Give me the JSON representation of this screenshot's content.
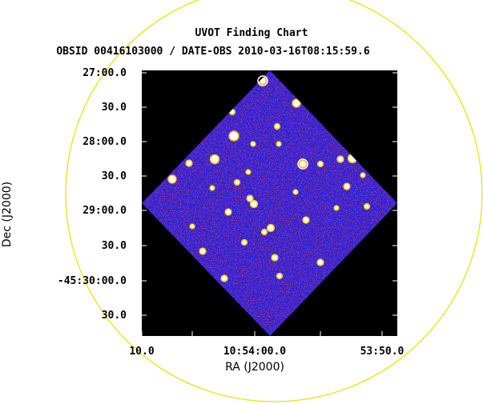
{
  "chart_data": {
    "type": "image",
    "title": "UVOT Finding Chart",
    "subtitle": "OBSID 00416103000 / DATE-OBS 2010-03-16T08:15:59.6",
    "xlabel": "RA (J2000)",
    "ylabel": "Dec (J2000)",
    "x_ticks": [
      "10.0",
      "10:54:00.0",
      "53:50.0"
    ],
    "y_ticks": [
      "27:00.0",
      "30.0",
      "28:00.0",
      "30.0",
      "29:00.0",
      "30.0",
      "-45:30:00.0",
      "30.0"
    ],
    "grid": false,
    "colors": {
      "background": "#000000",
      "field": "#2a23d8",
      "noise": "#cc1020",
      "star": "#ffffff",
      "star_halo": "#ffd21a",
      "circle": "#e8e000",
      "markers": "#ffffff"
    }
  }
}
